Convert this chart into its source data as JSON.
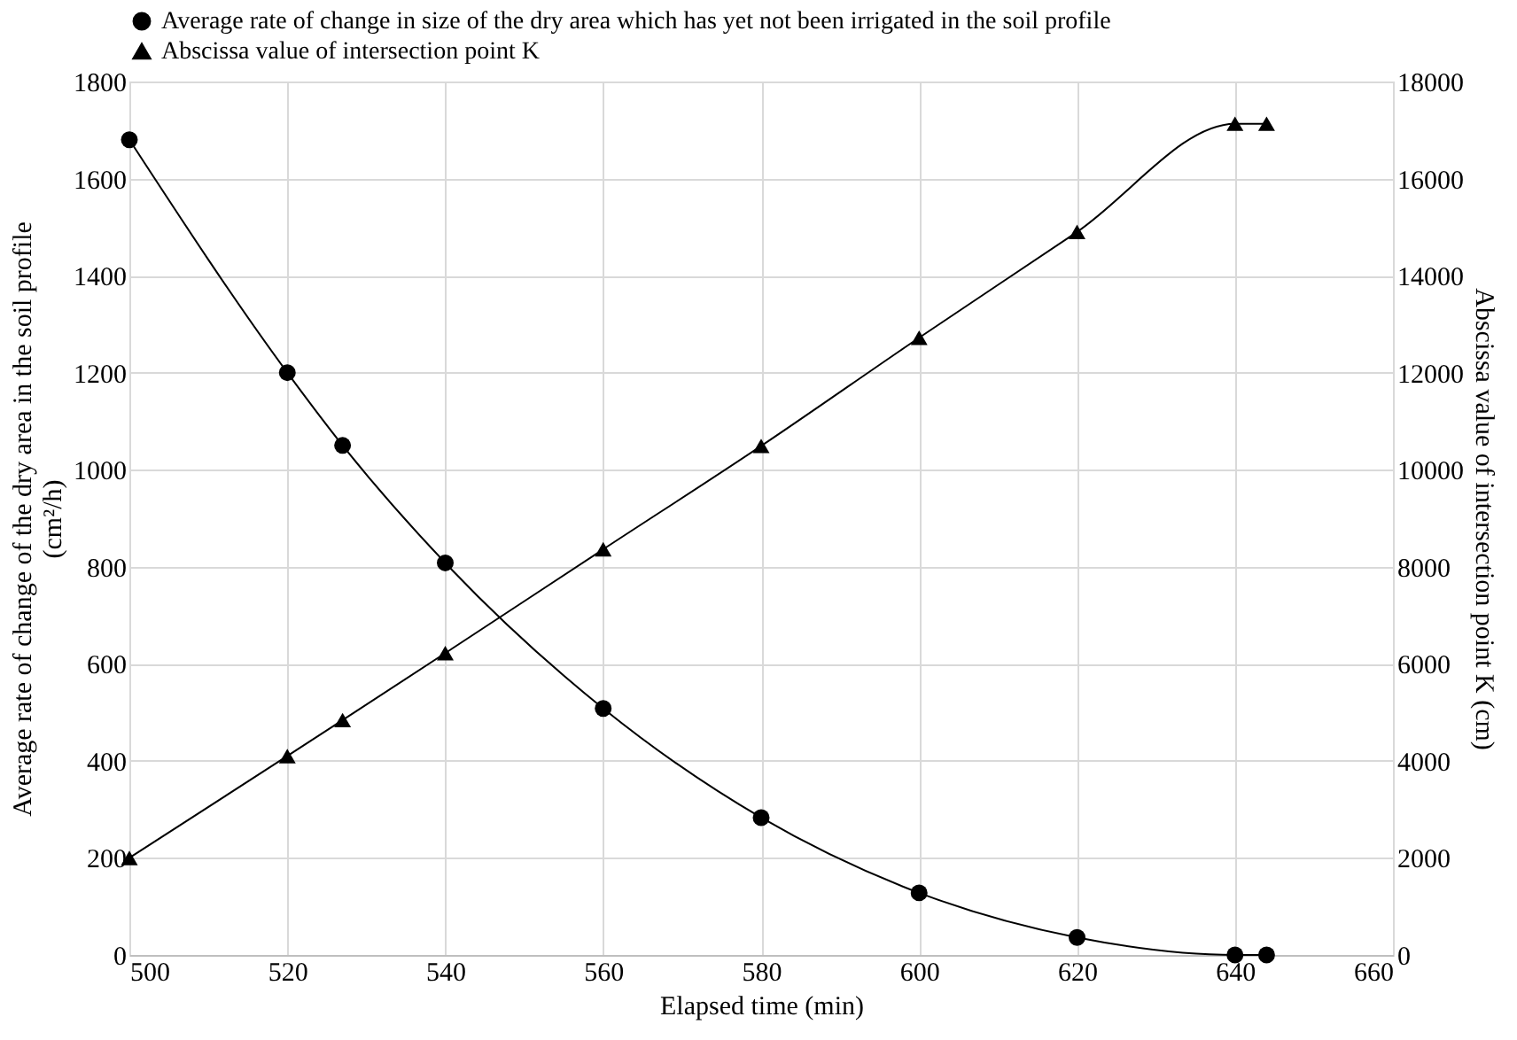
{
  "chart_data": {
    "type": "line",
    "xlabel": "Elapsed time (min)",
    "ylabel": "Average rate of change of the dry area in the soil profile\n(cm²/h)",
    "y2label": "Abscissa value of intersection point K (cm)",
    "x": [
      500,
      520,
      527,
      540,
      560,
      580,
      600,
      620,
      640,
      644
    ],
    "series": [
      {
        "name": "Average rate of change in size of the dry area which has yet not been irrigated in the soil profile",
        "color": "#000000",
        "marker": "circle",
        "values": [
          1680,
          1200,
          1050,
          808,
          508,
          283,
          128,
          36,
          0,
          0
        ]
      },
      {
        "name": "Abscissa value of intersection point K",
        "color": "#000000",
        "marker": "triangle",
        "axis": "y2",
        "values": [
          2000,
          4100,
          4840,
          6220,
          8360,
          10490,
          12720,
          14900,
          17130,
          17130
        ]
      }
    ],
    "xlim": [
      500,
      660
    ],
    "xticks": [
      500,
      520,
      540,
      560,
      580,
      600,
      620,
      640,
      660
    ],
    "ylim": [
      0,
      1800
    ],
    "yticks": [
      0,
      200,
      400,
      600,
      800,
      1000,
      1200,
      1400,
      1600,
      1800
    ],
    "y2lim": [
      0,
      18000
    ],
    "y2ticks": [
      0,
      2000,
      4000,
      6000,
      8000,
      10000,
      12000,
      14000,
      16000,
      18000
    ],
    "grid": true,
    "legend": "top left",
    "line_style": "solid"
  }
}
